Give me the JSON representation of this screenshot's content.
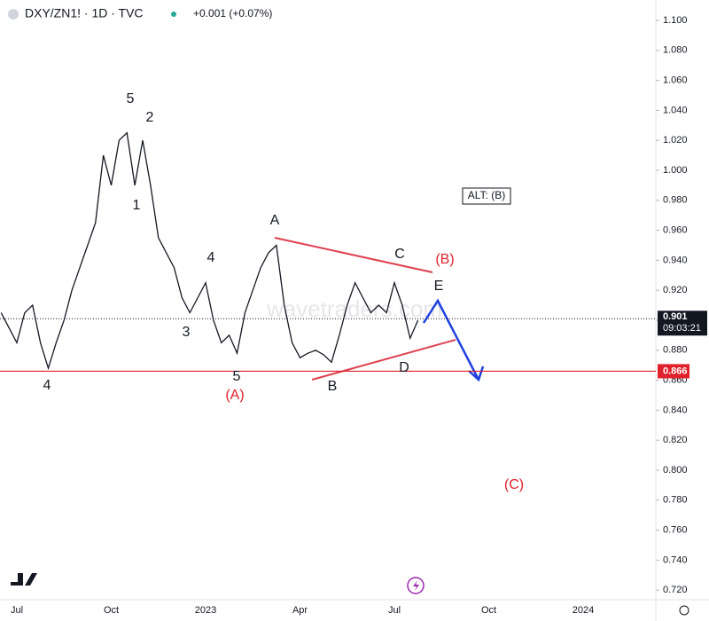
{
  "chart_data": {
    "type": "line",
    "title": "DXY/ZN1! · 1D · TVC",
    "change": "+0.001 (+0.07%)",
    "watermark": "wavetraders.com",
    "categories": [
      null,
      null,
      "Jul",
      null,
      null,
      null,
      null,
      null,
      null,
      null,
      null,
      null,
      null,
      null,
      "Oct",
      null,
      null,
      null,
      null,
      null,
      null,
      null,
      null,
      null,
      null,
      null,
      "2023",
      null,
      null,
      null,
      null,
      null,
      null,
      null,
      null,
      null,
      null,
      null,
      "Apr",
      null,
      null,
      null,
      null,
      null,
      null,
      null,
      null,
      null,
      null,
      null,
      "Jul",
      null,
      null,
      null,
      null,
      null,
      null,
      null,
      null,
      null,
      null,
      null,
      "Oct",
      null,
      null,
      null,
      null,
      null,
      null,
      null,
      null,
      null,
      null,
      null,
      "2024",
      null
    ],
    "series": [
      {
        "name": "DXY/ZN1!",
        "color": "#131722",
        "values": [
          0.905,
          0.895,
          0.885,
          0.905,
          0.91,
          0.885,
          0.868,
          0.885,
          0.9,
          0.92,
          0.935,
          0.95,
          0.965,
          1.01,
          0.99,
          1.02,
          1.025,
          0.99,
          1.02,
          0.99,
          0.955,
          0.945,
          0.935,
          0.915,
          0.905,
          0.915,
          0.925,
          0.9,
          0.885,
          0.89,
          0.878,
          0.905,
          0.92,
          0.935,
          0.945,
          0.95,
          0.91,
          0.885,
          0.875,
          0.878,
          0.88,
          0.877,
          0.872,
          0.89,
          0.91,
          0.925,
          0.915,
          0.905,
          0.91,
          0.905,
          0.925,
          0.91,
          0.888,
          0.9,
          null,
          null,
          null,
          null,
          null,
          null,
          null,
          null,
          null,
          null,
          null,
          null,
          null,
          null,
          null,
          null,
          null,
          null,
          null,
          null,
          null,
          null
        ]
      }
    ],
    "ylim": [
      0.7136,
      1.1136
    ],
    "yticks": [
      {
        "value": 1.1,
        "label": "1.100"
      },
      {
        "value": 1.08,
        "label": "1.080"
      },
      {
        "value": 1.06,
        "label": "1.060"
      },
      {
        "value": 1.04,
        "label": "1.040"
      },
      {
        "value": 1.02,
        "label": "1.020"
      },
      {
        "value": 1.0,
        "label": "1.000"
      },
      {
        "value": 0.98,
        "label": "0.980"
      },
      {
        "value": 0.96,
        "label": "0.960"
      },
      {
        "value": 0.94,
        "label": "0.940"
      },
      {
        "value": 0.92,
        "label": "0.920"
      },
      {
        "value": 0.9,
        "label": "0.900"
      },
      {
        "value": 0.88,
        "label": "0.880"
      },
      {
        "value": 0.86,
        "label": "0.860"
      },
      {
        "value": 0.84,
        "label": "0.840"
      },
      {
        "value": 0.82,
        "label": "0.820"
      },
      {
        "value": 0.8,
        "label": "0.800"
      },
      {
        "value": 0.78,
        "label": "0.780"
      },
      {
        "value": 0.76,
        "label": "0.760"
      },
      {
        "value": 0.74,
        "label": "0.740"
      },
      {
        "value": 0.72,
        "label": "0.720"
      }
    ],
    "last_price": {
      "value": 0.901,
      "label": "0.901",
      "countdown": "09:03:21"
    },
    "support": {
      "value": 0.866,
      "label": "0.866"
    },
    "note": "ALT: (B)",
    "annotations": [
      {
        "text": "5",
        "color": "#131722"
      },
      {
        "text": "2",
        "color": "#131722"
      },
      {
        "text": "1",
        "color": "#131722"
      },
      {
        "text": "4",
        "color": "#131722"
      },
      {
        "text": "3",
        "color": "#131722"
      },
      {
        "text": "5",
        "color": "#131722"
      },
      {
        "text": "(A)",
        "color": "#e0202a"
      },
      {
        "text": "4",
        "color": "#131722"
      },
      {
        "text": "A",
        "color": "#131722"
      },
      {
        "text": "B",
        "color": "#131722"
      },
      {
        "text": "C",
        "color": "#131722"
      },
      {
        "text": "D",
        "color": "#131722"
      },
      {
        "text": "E",
        "color": "#131722"
      },
      {
        "text": "(B)",
        "color": "#e0202a"
      },
      {
        "text": "(C)",
        "color": "#e0202a"
      }
    ]
  }
}
